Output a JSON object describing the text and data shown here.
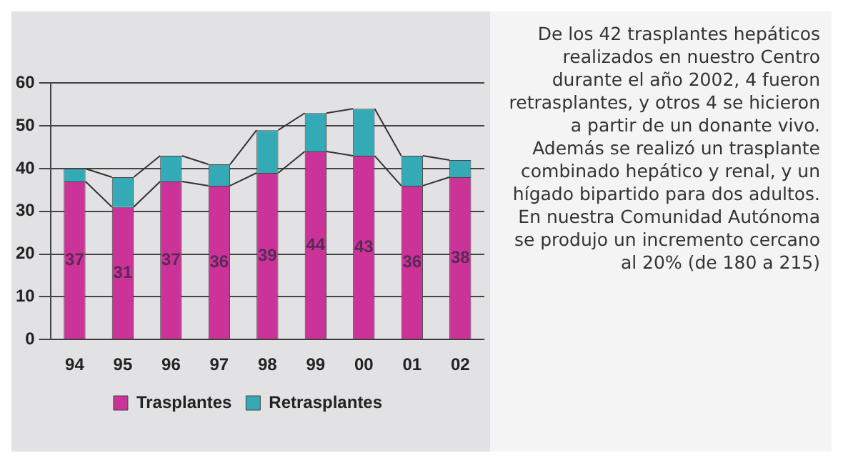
{
  "chart_data": {
    "type": "bar",
    "stacked": true,
    "categories": [
      "94",
      "95",
      "96",
      "97",
      "98",
      "99",
      "00",
      "01",
      "02"
    ],
    "series": [
      {
        "name": "Trasplantes",
        "color": "#cc3399",
        "values": [
          37,
          31,
          37,
          36,
          39,
          44,
          43,
          36,
          38
        ],
        "value_labels": [
          "37",
          "31",
          "37",
          "36",
          "39",
          "44",
          "43",
          "36",
          "38"
        ]
      },
      {
        "name": "Retrasplantes",
        "color": "#33aab5",
        "values": [
          3,
          7,
          6,
          5,
          10,
          9,
          11,
          7,
          4
        ]
      }
    ],
    "ylim": [
      0,
      60
    ],
    "yticks": [
      0,
      10,
      20,
      30,
      40,
      50,
      60
    ],
    "grid": "y",
    "legend": "bottom",
    "annotations": [
      "De los 42 trasplantes hepáticos realizados en nuestro Centro durante el año 2002, 4 fueron retrasplantes, y otros 4 se hicieron a partir de un donante vivo. Además se realizó un trasplante combinado hepático y renal, y un hígado bipartido para dos adultos. En nuestra Comunidad Autónoma se produjo un incremento cercano al 20%  (de 180 a 215)"
    ]
  }
}
